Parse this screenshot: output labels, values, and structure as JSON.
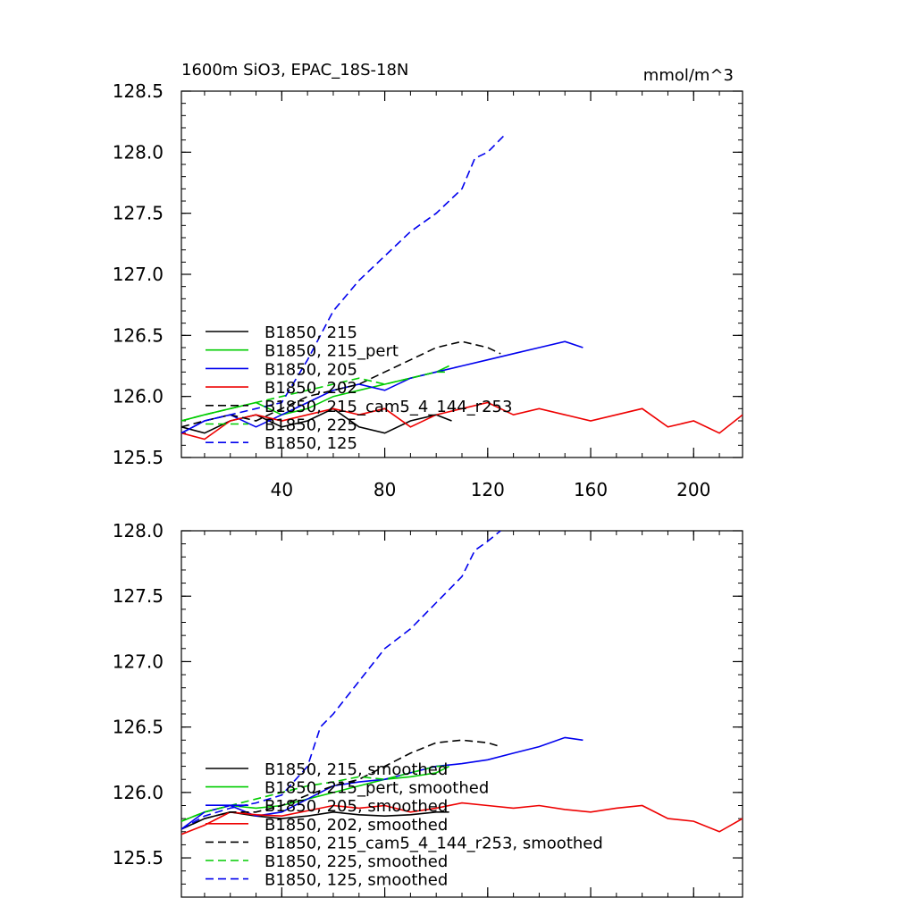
{
  "chart_data": [
    {
      "type": "line",
      "title": "1600m SiO3, EPAC_18S-18N",
      "units": "mmol/m^3",
      "xlim": [
        1,
        219
      ],
      "ylim": [
        125.5,
        128.5
      ],
      "xticks": [
        40,
        80,
        120,
        160,
        200
      ],
      "yticks": [
        125.5,
        126.0,
        126.5,
        127.0,
        127.5,
        128.0,
        128.5
      ],
      "legend_position": "lower-left",
      "series": [
        {
          "name": "B1850, 215",
          "color": "#000000",
          "dash": "solid",
          "x": [
            1,
            10,
            20,
            30,
            40,
            50,
            60,
            70,
            80,
            90,
            100,
            106
          ],
          "y": [
            125.75,
            125.7,
            125.8,
            125.85,
            125.75,
            125.8,
            125.9,
            125.75,
            125.7,
            125.8,
            125.85,
            125.8
          ]
        },
        {
          "name": "B1850, 215_pert",
          "color": "#00cc00",
          "dash": "solid",
          "x": [
            1,
            10,
            20,
            30,
            40,
            50,
            60,
            70,
            80,
            90,
            100,
            105
          ],
          "y": [
            125.8,
            125.85,
            125.9,
            125.95,
            125.85,
            125.9,
            126.0,
            126.05,
            126.1,
            126.15,
            126.2,
            126.25
          ]
        },
        {
          "name": "B1850, 205",
          "color": "#0000ee",
          "dash": "solid",
          "x": [
            1,
            10,
            20,
            30,
            40,
            50,
            60,
            70,
            80,
            90,
            100,
            110,
            120,
            130,
            140,
            150,
            157
          ],
          "y": [
            125.7,
            125.8,
            125.85,
            125.75,
            125.85,
            125.95,
            126.05,
            126.1,
            126.05,
            126.15,
            126.2,
            126.25,
            126.3,
            126.35,
            126.4,
            126.45,
            126.4
          ]
        },
        {
          "name": "B1850, 202",
          "color": "#ee0000",
          "dash": "solid",
          "x": [
            1,
            10,
            20,
            30,
            40,
            50,
            60,
            70,
            80,
            90,
            100,
            110,
            120,
            130,
            140,
            150,
            160,
            170,
            180,
            190,
            200,
            210,
            219
          ],
          "y": [
            125.7,
            125.65,
            125.8,
            125.85,
            125.8,
            125.85,
            125.9,
            125.85,
            125.9,
            125.75,
            125.85,
            125.9,
            125.95,
            125.85,
            125.9,
            125.85,
            125.8,
            125.85,
            125.9,
            125.75,
            125.8,
            125.7,
            125.85
          ]
        },
        {
          "name": "B1850, 215_cam5_4_144_r253",
          "color": "#000000",
          "dash": "dashed",
          "x": [
            1,
            10,
            20,
            30,
            40,
            50,
            60,
            70,
            80,
            90,
            100,
            110,
            120,
            125
          ],
          "y": [
            125.75,
            125.8,
            125.85,
            125.8,
            125.9,
            126.0,
            126.05,
            126.1,
            126.2,
            126.3,
            126.4,
            126.45,
            126.4,
            126.35
          ]
        },
        {
          "name": "B1850, 225",
          "color": "#00cc00",
          "dash": "dashed",
          "x": [
            1,
            10,
            20,
            30,
            40,
            50,
            60,
            70,
            80,
            90,
            100,
            104
          ],
          "y": [
            125.8,
            125.85,
            125.9,
            125.95,
            126.0,
            126.05,
            126.1,
            126.15,
            126.1,
            126.15,
            126.2,
            126.2
          ]
        },
        {
          "name": "B1850, 125",
          "color": "#0000ee",
          "dash": "dashed",
          "x": [
            1,
            10,
            20,
            30,
            40,
            50,
            55,
            60,
            70,
            80,
            90,
            100,
            110,
            115,
            120,
            127
          ],
          "y": [
            125.7,
            125.8,
            125.85,
            125.9,
            125.95,
            126.3,
            126.5,
            126.7,
            126.95,
            127.15,
            127.35,
            127.5,
            127.7,
            127.95,
            128.0,
            128.15
          ]
        }
      ]
    },
    {
      "type": "line",
      "xlim": [
        1,
        219
      ],
      "ylim": [
        125.2,
        128.0
      ],
      "xticks": [
        40,
        80,
        120,
        160,
        200
      ],
      "yticks": [
        125.5,
        126.0,
        126.5,
        127.0,
        127.5,
        128.0
      ],
      "legend_position": "lower-left",
      "series": [
        {
          "name": "B1850, 215, smoothed",
          "color": "#000000",
          "dash": "solid",
          "x": [
            1,
            10,
            20,
            30,
            40,
            50,
            60,
            70,
            80,
            90,
            100,
            105
          ],
          "y": [
            125.72,
            125.8,
            125.85,
            125.82,
            125.8,
            125.82,
            125.85,
            125.83,
            125.82,
            125.83,
            125.85,
            125.85
          ]
        },
        {
          "name": "B1850, 215_pert, smoothed",
          "color": "#00cc00",
          "dash": "solid",
          "x": [
            1,
            10,
            20,
            30,
            40,
            50,
            60,
            70,
            80,
            90,
            100,
            105
          ],
          "y": [
            125.78,
            125.85,
            125.9,
            125.88,
            125.9,
            125.95,
            126.0,
            126.05,
            126.1,
            126.12,
            126.15,
            126.2
          ]
        },
        {
          "name": "B1850, 205, smoothed",
          "color": "#0000ee",
          "dash": "solid",
          "x": [
            1,
            10,
            20,
            30,
            40,
            50,
            60,
            70,
            80,
            90,
            100,
            110,
            120,
            130,
            140,
            150,
            157
          ],
          "y": [
            125.72,
            125.85,
            125.9,
            125.82,
            125.85,
            125.95,
            126.05,
            126.08,
            126.1,
            126.15,
            126.2,
            126.22,
            126.25,
            126.3,
            126.35,
            126.42,
            126.4
          ]
        },
        {
          "name": "B1850, 202, smoothed",
          "color": "#ee0000",
          "dash": "solid",
          "x": [
            1,
            10,
            20,
            30,
            40,
            50,
            60,
            70,
            80,
            90,
            100,
            110,
            120,
            130,
            140,
            150,
            160,
            170,
            180,
            190,
            200,
            210,
            219
          ],
          "y": [
            125.68,
            125.75,
            125.85,
            125.83,
            125.82,
            125.86,
            125.9,
            125.88,
            125.9,
            125.85,
            125.88,
            125.92,
            125.9,
            125.88,
            125.9,
            125.87,
            125.85,
            125.88,
            125.9,
            125.8,
            125.78,
            125.7,
            125.8
          ]
        },
        {
          "name": "B1850, 215_cam5_4_144_r253, smoothed",
          "color": "#000000",
          "dash": "dashed",
          "x": [
            1,
            10,
            20,
            30,
            40,
            50,
            60,
            70,
            80,
            90,
            100,
            110,
            120,
            125
          ],
          "y": [
            125.72,
            125.8,
            125.85,
            125.85,
            125.9,
            125.98,
            126.05,
            126.1,
            126.2,
            126.3,
            126.38,
            126.4,
            126.38,
            126.35
          ]
        },
        {
          "name": "B1850, 225, smoothed",
          "color": "#00cc00",
          "dash": "dashed",
          "x": [
            1,
            10,
            20,
            30,
            40,
            50,
            60,
            70,
            80,
            90,
            100,
            104
          ],
          "y": [
            125.78,
            125.85,
            125.9,
            125.95,
            126.0,
            126.05,
            126.08,
            126.12,
            126.1,
            126.15,
            126.2,
            126.2
          ]
        },
        {
          "name": "B1850, 125, smoothed",
          "color": "#0000ee",
          "dash": "dashed",
          "x": [
            1,
            10,
            20,
            30,
            40,
            50,
            55,
            60,
            70,
            80,
            90,
            100,
            110,
            115,
            120,
            125
          ],
          "y": [
            125.72,
            125.82,
            125.88,
            125.92,
            125.98,
            126.2,
            126.5,
            126.6,
            126.85,
            127.1,
            127.25,
            127.45,
            127.65,
            127.85,
            127.92,
            128.0
          ]
        }
      ]
    }
  ]
}
